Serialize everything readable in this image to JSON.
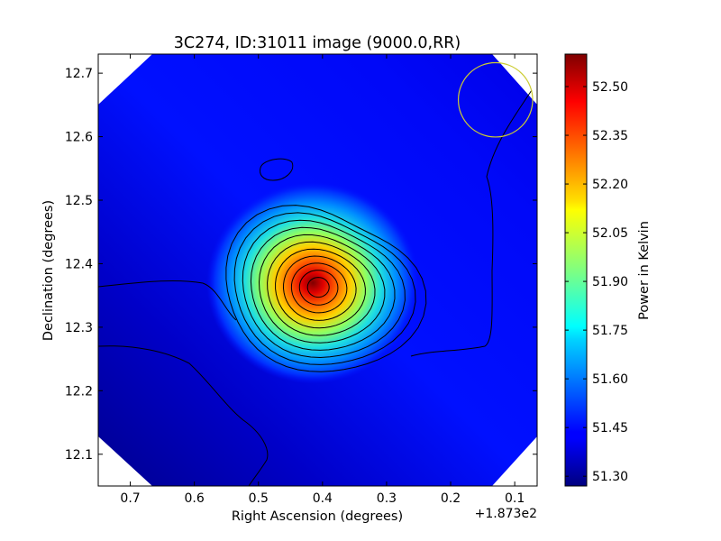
{
  "chart_data": {
    "type": "heatmap",
    "title": "3C274, ID:31011 image (9000.0,RR)",
    "xlabel": "Right Ascension (degrees)",
    "ylabel": "Declination (degrees)",
    "x_offset_label": "+1.873e2",
    "xlim": [
      0.75,
      0.065
    ],
    "ylim": [
      12.05,
      12.73
    ],
    "x_ticks": [
      "0.7",
      "0.6",
      "0.5",
      "0.4",
      "0.3",
      "0.2",
      "0.1"
    ],
    "x_tick_values": [
      0.7,
      0.6,
      0.5,
      0.4,
      0.3,
      0.2,
      0.1
    ],
    "y_ticks": [
      "12.1",
      "12.2",
      "12.3",
      "12.4",
      "12.5",
      "12.6",
      "12.7"
    ],
    "y_tick_values": [
      12.1,
      12.2,
      12.3,
      12.4,
      12.5,
      12.6,
      12.7
    ],
    "colorbar": {
      "label": "Power in Kelvin",
      "range": [
        51.27,
        52.6
      ],
      "ticks": [
        "51.30",
        "51.45",
        "51.60",
        "51.75",
        "51.90",
        "52.05",
        "52.20",
        "52.35",
        "52.50"
      ],
      "tick_values": [
        51.3,
        51.45,
        51.6,
        51.75,
        51.9,
        52.05,
        52.2,
        52.35,
        52.5
      ]
    },
    "colormap": "jet",
    "source": {
      "ra": 0.415,
      "dec": 12.37,
      "peak": 52.58
    },
    "beam": {
      "ra": 0.13,
      "dec": 12.658,
      "radius_deg": 0.058,
      "color": "#cccc33"
    },
    "grid": false
  }
}
